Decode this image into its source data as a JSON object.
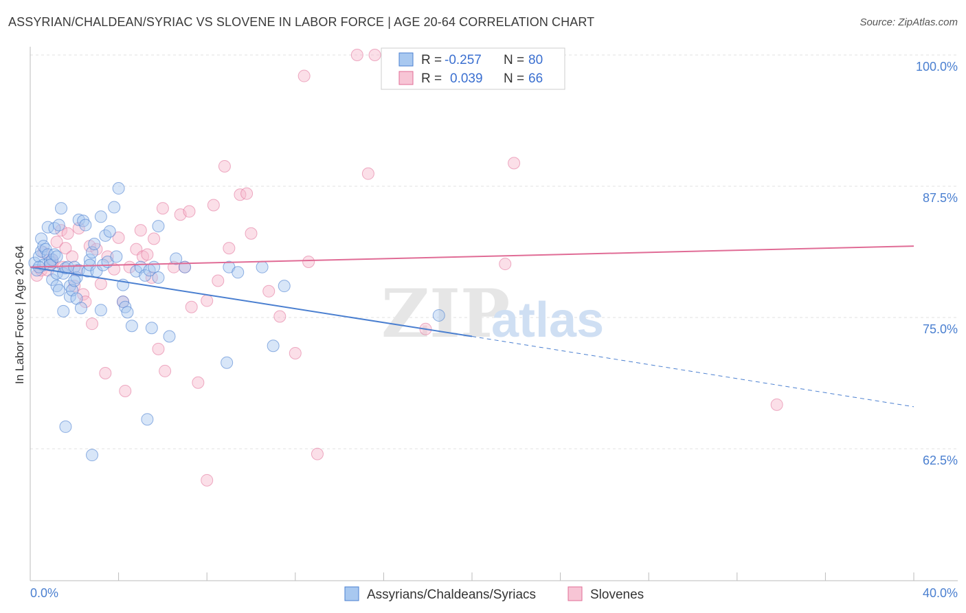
{
  "title": "ASSYRIAN/CHALDEAN/SYRIAC VS SLOVENE IN LABOR FORCE | AGE 20-64 CORRELATION CHART",
  "source": "Source: ZipAtlas.com",
  "watermark": {
    "zip": "ZIP",
    "atlas": "atlas"
  },
  "colors": {
    "blue": "#4a7fd0",
    "blue_fill": "#a8c8f0",
    "pink": "#e06b95",
    "pink_fill": "#f7b8cc",
    "grid": "#e0e0e0"
  },
  "legend": {
    "rows": [
      {
        "r_label": "R =",
        "r_value": "-0.257",
        "n_label": "N =",
        "n_value": "80"
      },
      {
        "r_label": "R =",
        "r_value": "0.039",
        "n_label": "N =",
        "n_value": "66"
      }
    ]
  },
  "chart_data": {
    "type": "scatter",
    "xlabel": "",
    "ylabel": "In Labor Force | Age 20-64",
    "xlim": [
      0,
      40
    ],
    "ylim": [
      50,
      102
    ],
    "x_tick_labels": {
      "0": "0.0%",
      "40": "40.0%"
    },
    "y_ticks": [
      100,
      87.5,
      75,
      62.5
    ],
    "y_tick_labels": [
      "100.0%",
      "87.5%",
      "75.0%",
      "62.5%"
    ],
    "grid": true,
    "legend_position": "top-center",
    "series": [
      {
        "name": "Assyrians/Chaldeans/Syriacs",
        "color": "#4a7fd0",
        "trend": {
          "x0": 0,
          "y0": 79.8,
          "x1": 20,
          "y1": 73.2,
          "x1_dashed": 40,
          "y1_dashed": 66.5
        },
        "points": [
          [
            0.2,
            80.2
          ],
          [
            0.3,
            79.5
          ],
          [
            0.4,
            80.8
          ],
          [
            0.5,
            81.3
          ],
          [
            0.5,
            82.5
          ],
          [
            0.6,
            81.8
          ],
          [
            0.6,
            80.0
          ],
          [
            0.7,
            81.5
          ],
          [
            0.8,
            81.0
          ],
          [
            0.8,
            83.6
          ],
          [
            0.9,
            80.3
          ],
          [
            1.0,
            78.6
          ],
          [
            1.0,
            80.5
          ],
          [
            1.1,
            81.0
          ],
          [
            1.1,
            83.5
          ],
          [
            1.2,
            79.2
          ],
          [
            1.2,
            78.0
          ],
          [
            1.3,
            77.6
          ],
          [
            1.3,
            83.8
          ],
          [
            1.4,
            85.4
          ],
          [
            1.5,
            79.2
          ],
          [
            1.5,
            75.6
          ],
          [
            1.6,
            79.7
          ],
          [
            1.7,
            79.8
          ],
          [
            1.8,
            77.0
          ],
          [
            1.8,
            78.0
          ],
          [
            1.9,
            77.6
          ],
          [
            2.0,
            79.8
          ],
          [
            2.1,
            78.8
          ],
          [
            2.1,
            76.8
          ],
          [
            2.2,
            79.5
          ],
          [
            2.2,
            84.3
          ],
          [
            2.3,
            75.9
          ],
          [
            2.4,
            84.2
          ],
          [
            2.5,
            83.8
          ],
          [
            2.6,
            79.4
          ],
          [
            2.7,
            80.5
          ],
          [
            2.7,
            80.0
          ],
          [
            2.8,
            81.2
          ],
          [
            2.9,
            82.0
          ],
          [
            3.0,
            79.4
          ],
          [
            3.2,
            84.6
          ],
          [
            3.2,
            75.7
          ],
          [
            3.3,
            80.0
          ],
          [
            3.4,
            82.8
          ],
          [
            3.5,
            80.3
          ],
          [
            3.6,
            83.2
          ],
          [
            3.8,
            85.5
          ],
          [
            3.9,
            80.8
          ],
          [
            4.0,
            87.3
          ],
          [
            4.2,
            76.5
          ],
          [
            4.2,
            78.1
          ],
          [
            4.3,
            76.0
          ],
          [
            4.4,
            75.5
          ],
          [
            4.6,
            74.2
          ],
          [
            4.8,
            79.4
          ],
          [
            5.0,
            79.8
          ],
          [
            5.2,
            79.0
          ],
          [
            5.4,
            79.5
          ],
          [
            5.6,
            79.8
          ],
          [
            5.8,
            78.8
          ],
          [
            5.8,
            83.7
          ],
          [
            6.3,
            73.2
          ],
          [
            6.6,
            80.6
          ],
          [
            7.0,
            79.8
          ],
          [
            9.0,
            79.8
          ],
          [
            9.4,
            79.3
          ],
          [
            10.5,
            79.8
          ],
          [
            11.0,
            72.3
          ],
          [
            11.5,
            78.0
          ],
          [
            18.5,
            75.2
          ],
          [
            1.6,
            64.6
          ],
          [
            2.8,
            61.9
          ],
          [
            5.3,
            65.3
          ],
          [
            8.9,
            70.7
          ],
          [
            5.5,
            74.0
          ],
          [
            0.9,
            80.0
          ],
          [
            1.2,
            80.8
          ],
          [
            0.4,
            79.8
          ],
          [
            2.0,
            78.5
          ]
        ]
      },
      {
        "name": "Slovenes",
        "color": "#e06b95",
        "trend": {
          "x0": 0,
          "y0": 79.8,
          "x1": 40,
          "y1": 81.8
        },
        "points": [
          [
            0.3,
            79.0
          ],
          [
            0.5,
            79.5
          ],
          [
            0.6,
            81.2
          ],
          [
            0.8,
            79.5
          ],
          [
            0.9,
            80.0
          ],
          [
            1.0,
            80.3
          ],
          [
            1.2,
            82.2
          ],
          [
            1.4,
            83.3
          ],
          [
            1.5,
            79.8
          ],
          [
            1.6,
            81.6
          ],
          [
            1.7,
            83.0
          ],
          [
            1.9,
            80.8
          ],
          [
            2.0,
            78.0
          ],
          [
            2.1,
            79.5
          ],
          [
            2.2,
            83.5
          ],
          [
            2.4,
            77.2
          ],
          [
            2.5,
            76.5
          ],
          [
            2.7,
            81.8
          ],
          [
            2.8,
            74.4
          ],
          [
            3.0,
            81.5
          ],
          [
            3.2,
            78.2
          ],
          [
            3.4,
            69.7
          ],
          [
            3.5,
            80.8
          ],
          [
            3.8,
            79.6
          ],
          [
            4.0,
            82.6
          ],
          [
            4.2,
            76.5
          ],
          [
            4.3,
            68.0
          ],
          [
            4.5,
            79.8
          ],
          [
            4.8,
            81.5
          ],
          [
            5.0,
            83.3
          ],
          [
            5.1,
            80.8
          ],
          [
            5.3,
            81.0
          ],
          [
            5.5,
            78.8
          ],
          [
            5.8,
            72.0
          ],
          [
            6.0,
            85.4
          ],
          [
            6.1,
            69.9
          ],
          [
            6.5,
            79.8
          ],
          [
            6.8,
            84.8
          ],
          [
            7.0,
            79.8
          ],
          [
            7.2,
            85.1
          ],
          [
            7.3,
            76.0
          ],
          [
            7.6,
            68.8
          ],
          [
            8.0,
            76.6
          ],
          [
            8.3,
            85.7
          ],
          [
            8.5,
            78.5
          ],
          [
            8.8,
            89.4
          ],
          [
            9.0,
            81.6
          ],
          [
            9.5,
            86.7
          ],
          [
            9.8,
            86.8
          ],
          [
            10.0,
            83.0
          ],
          [
            10.8,
            77.5
          ],
          [
            11.3,
            75.1
          ],
          [
            12.0,
            71.6
          ],
          [
            12.4,
            98.0
          ],
          [
            12.6,
            80.3
          ],
          [
            13.0,
            62.0
          ],
          [
            14.8,
            100.0
          ],
          [
            15.3,
            88.7
          ],
          [
            15.6,
            100.0
          ],
          [
            17.9,
            73.9
          ],
          [
            21.5,
            80.1
          ],
          [
            21.9,
            89.7
          ],
          [
            33.8,
            66.7
          ],
          [
            8.0,
            59.5
          ],
          [
            5.6,
            82.5
          ],
          [
            1.0,
            80.5
          ]
        ]
      }
    ]
  },
  "bottom_legend": [
    {
      "label": "Assyrians/Chaldeans/Syriacs"
    },
    {
      "label": "Slovenes"
    }
  ]
}
